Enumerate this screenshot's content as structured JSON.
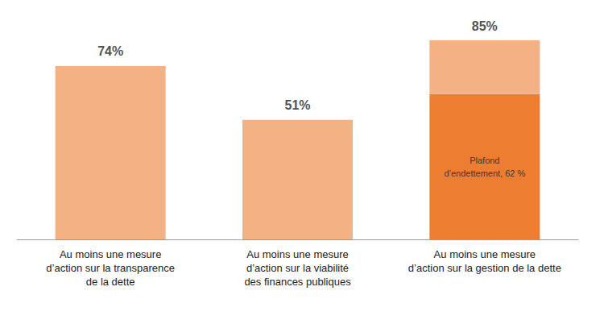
{
  "chart_data": {
    "type": "bar",
    "categories": [
      "Au moins une mesure\nd’action sur la transparence\nde la dette",
      "Au moins une mesure\nd’action sur la viabilité\ndes finances publiques",
      "Au moins une mesure\nd’action sur la gestion de la dette"
    ],
    "series": [
      {
        "color": "#ed7d31",
        "values": [
          null,
          null,
          62
        ],
        "value_labels": [
          null,
          null,
          "Plafond\nd’endettement, 62 %"
        ]
      },
      {
        "color": "#f4b183",
        "values": [
          74,
          51,
          23
        ]
      }
    ],
    "totals": [
      74,
      51,
      85
    ],
    "total_labels": [
      "74%",
      "51%",
      "85%"
    ],
    "ylim": [
      0,
      85
    ],
    "stacked": true,
    "data_labels": true,
    "tick_labels": "x",
    "grid": false
  }
}
